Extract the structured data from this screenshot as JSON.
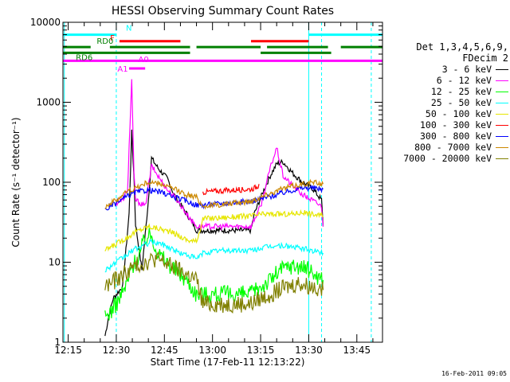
{
  "chart_data": {
    "type": "line",
    "title": "HESSI Observing Summary Count Rates",
    "xlabel": "Start Time (17-Feb-11 12:13:22)",
    "ylabel": "Count Rate (s⁻¹ detector⁻¹)",
    "x_ticks": [
      "12:15",
      "12:30",
      "12:45",
      "13:00",
      "13:15",
      "13:30",
      "13:45"
    ],
    "x_tick_minutes": [
      15,
      30,
      45,
      60,
      75,
      90,
      105
    ],
    "xlim_minutes": [
      13.37,
      113.0
    ],
    "ylim": [
      1,
      10000
    ],
    "yscale": "log",
    "y_ticks": [
      1,
      10,
      100,
      1000,
      10000
    ],
    "y_tick_labels": [
      "1",
      "10",
      "100",
      "1000",
      "10000"
    ],
    "legend_title": [
      "Det 1,3,4,5,6,9,",
      "FDecim 2"
    ],
    "legend_position": "right",
    "series": [
      {
        "name": "3 - 6 keV",
        "color": "#000000",
        "points": [
          [
            26.5,
            1.2
          ],
          [
            27.5,
            2
          ],
          [
            29,
            3.5
          ],
          [
            32,
            5
          ],
          [
            34,
            40
          ],
          [
            34.8,
            420
          ],
          [
            35.5,
            120
          ],
          [
            36,
            30
          ],
          [
            38,
            8
          ],
          [
            40,
            60
          ],
          [
            41,
            200
          ],
          [
            43,
            150
          ],
          [
            46,
            110
          ],
          [
            48,
            70
          ],
          [
            52,
            40
          ],
          [
            54,
            30
          ],
          [
            55,
            25
          ],
          [
            72,
            25
          ],
          [
            73,
            40
          ],
          [
            76,
            80
          ],
          [
            78,
            120
          ],
          [
            80,
            170
          ],
          [
            82,
            180
          ],
          [
            85,
            130
          ],
          [
            88,
            100
          ],
          [
            90,
            90
          ],
          [
            91,
            85
          ],
          [
            94,
            60
          ],
          [
            94.5,
            28
          ]
        ]
      },
      {
        "name": "6 - 12 keV",
        "color": "#ff00ff",
        "points": [
          [
            30,
            55
          ],
          [
            32,
            60
          ],
          [
            33.5,
            80
          ],
          [
            34.8,
            1900
          ],
          [
            35.5,
            130
          ],
          [
            36,
            60
          ],
          [
            39,
            50
          ],
          [
            41,
            160
          ],
          [
            43,
            120
          ],
          [
            46,
            80
          ],
          [
            49,
            60
          ],
          [
            52,
            40
          ],
          [
            55,
            28
          ],
          [
            72,
            28
          ],
          [
            75,
            50
          ],
          [
            78,
            150
          ],
          [
            80,
            270
          ],
          [
            82,
            120
          ],
          [
            85,
            90
          ],
          [
            88,
            70
          ],
          [
            91,
            60
          ],
          [
            94,
            50
          ],
          [
            94.5,
            28
          ]
        ]
      },
      {
        "name": "12 - 25 keV",
        "color": "#00ff00",
        "points": [
          [
            26.5,
            2
          ],
          [
            30,
            3
          ],
          [
            33,
            5
          ],
          [
            35,
            9
          ],
          [
            37,
            12
          ],
          [
            39,
            20
          ],
          [
            41,
            22
          ],
          [
            43,
            13
          ],
          [
            47,
            9
          ],
          [
            52,
            6
          ],
          [
            55,
            4
          ],
          [
            72,
            4
          ],
          [
            75,
            5
          ],
          [
            78,
            6
          ],
          [
            81,
            8
          ],
          [
            84,
            9
          ],
          [
            87,
            9
          ],
          [
            90,
            8
          ],
          [
            92,
            7
          ],
          [
            94.5,
            6
          ]
        ]
      },
      {
        "name": "25 - 50 keV",
        "color": "#00ffff",
        "points": [
          [
            26.5,
            8
          ],
          [
            30,
            10
          ],
          [
            33,
            12
          ],
          [
            35,
            14
          ],
          [
            38,
            16
          ],
          [
            41,
            18
          ],
          [
            44,
            17
          ],
          [
            47,
            15
          ],
          [
            50,
            13
          ],
          [
            53,
            12
          ],
          [
            55,
            11
          ],
          [
            57,
            13
          ],
          [
            62,
            14
          ],
          [
            67,
            14
          ],
          [
            72,
            14
          ],
          [
            75,
            15
          ],
          [
            79,
            16
          ],
          [
            83,
            16
          ],
          [
            87,
            15
          ],
          [
            91,
            14
          ],
          [
            94.5,
            13
          ]
        ]
      },
      {
        "name": "50 - 100 keV",
        "color": "#e6e600",
        "points": [
          [
            26.5,
            14
          ],
          [
            30,
            17
          ],
          [
            33,
            20
          ],
          [
            36,
            24
          ],
          [
            40,
            28
          ],
          [
            44,
            26
          ],
          [
            48,
            23
          ],
          [
            52,
            19
          ],
          [
            55,
            18
          ],
          [
            57,
            35
          ],
          [
            62,
            36
          ],
          [
            67,
            37
          ],
          [
            72,
            38
          ],
          [
            76,
            40
          ],
          [
            80,
            40
          ],
          [
            84,
            40
          ],
          [
            88,
            42
          ],
          [
            91,
            40
          ],
          [
            94.5,
            38
          ]
        ]
      },
      {
        "name": "100 - 300 keV",
        "color": "#ff0000",
        "points": [
          [
            57,
            75
          ],
          [
            62,
            78
          ],
          [
            67,
            80
          ],
          [
            72,
            82
          ],
          [
            74,
            88
          ],
          [
            74.5,
            95
          ]
        ]
      },
      {
        "name": "300 - 800 keV",
        "color": "#0000ff",
        "points": [
          [
            26.5,
            45
          ],
          [
            30,
            55
          ],
          [
            33,
            65
          ],
          [
            36,
            75
          ],
          [
            40,
            80
          ],
          [
            44,
            75
          ],
          [
            48,
            65
          ],
          [
            52,
            58
          ],
          [
            55,
            52
          ],
          [
            57,
            52
          ],
          [
            62,
            54
          ],
          [
            67,
            56
          ],
          [
            72,
            58
          ],
          [
            76,
            63
          ],
          [
            80,
            70
          ],
          [
            84,
            78
          ],
          [
            88,
            85
          ],
          [
            91,
            85
          ],
          [
            94.5,
            82
          ]
        ]
      },
      {
        "name": "800 - 7000 keV",
        "color": "#cc8800",
        "points": [
          [
            26.5,
            50
          ],
          [
            30,
            60
          ],
          [
            33,
            75
          ],
          [
            36,
            85
          ],
          [
            40,
            100
          ],
          [
            44,
            95
          ],
          [
            48,
            82
          ],
          [
            52,
            70
          ],
          [
            55,
            65
          ],
          [
            57,
            50
          ],
          [
            62,
            52
          ],
          [
            67,
            55
          ],
          [
            72,
            58
          ],
          [
            76,
            68
          ],
          [
            80,
            78
          ],
          [
            84,
            88
          ],
          [
            88,
            95
          ],
          [
            91,
            100
          ],
          [
            94.5,
            95
          ]
        ]
      },
      {
        "name": "7000 - 20000 keV",
        "color": "#808000",
        "points": [
          [
            26.5,
            5
          ],
          [
            30,
            6
          ],
          [
            33,
            7.5
          ],
          [
            36,
            9
          ],
          [
            39,
            10
          ],
          [
            42,
            11
          ],
          [
            45,
            10
          ],
          [
            48,
            8.5
          ],
          [
            52,
            7
          ],
          [
            55,
            6
          ],
          [
            57,
            3
          ],
          [
            62,
            3
          ],
          [
            67,
            3
          ],
          [
            72,
            3
          ],
          [
            75,
            3.5
          ],
          [
            78,
            4
          ],
          [
            81,
            4.5
          ],
          [
            84,
            5
          ],
          [
            87,
            5.5
          ],
          [
            90,
            5
          ],
          [
            92,
            5
          ],
          [
            94.5,
            4.5
          ]
        ]
      }
    ],
    "flag_lines": [
      {
        "label": "N",
        "color": "#00ffff",
        "y": 7000,
        "segments": [
          [
            13.37,
            30
          ],
          [
            90,
            113
          ]
        ]
      },
      {
        "label": "F",
        "color": "#ff0000",
        "y": 5800,
        "segments": [
          [
            31,
            50
          ],
          [
            72,
            90
          ]
        ]
      },
      {
        "label": "RD0",
        "color": "#008000",
        "y": 4900,
        "segments": [
          [
            13.37,
            22
          ],
          [
            28,
            53
          ],
          [
            55,
            75
          ],
          [
            77,
            96
          ],
          [
            100,
            113
          ]
        ]
      },
      {
        "label": "RD6",
        "color": "#008000",
        "y": 4150,
        "segments": [
          [
            13.37,
            53
          ],
          [
            75,
            97
          ]
        ]
      },
      {
        "label": "",
        "color": "#ff00ff",
        "y": 3300,
        "segments": [
          [
            13.37,
            113
          ]
        ]
      },
      {
        "label": "A0",
        "color": "#ff00ff",
        "y": 3100,
        "segments": []
      },
      {
        "label": "A1",
        "color": "#ff00ff",
        "y": 2650,
        "segments": [
          [
            34,
            39
          ]
        ]
      }
    ],
    "vlines": [
      {
        "x": 13.8,
        "color": "#00ffff",
        "style": "solid"
      },
      {
        "x": 30,
        "color": "#00ffff",
        "style": "dashed"
      },
      {
        "x": 90,
        "color": "#00ffff",
        "style": "solid"
      },
      {
        "x": 94,
        "color": "#00ffff",
        "style": "dashed"
      },
      {
        "x": 109.5,
        "color": "#00ffff",
        "style": "dashed"
      }
    ],
    "timestamp": "16-Feb-2011 09:05"
  }
}
